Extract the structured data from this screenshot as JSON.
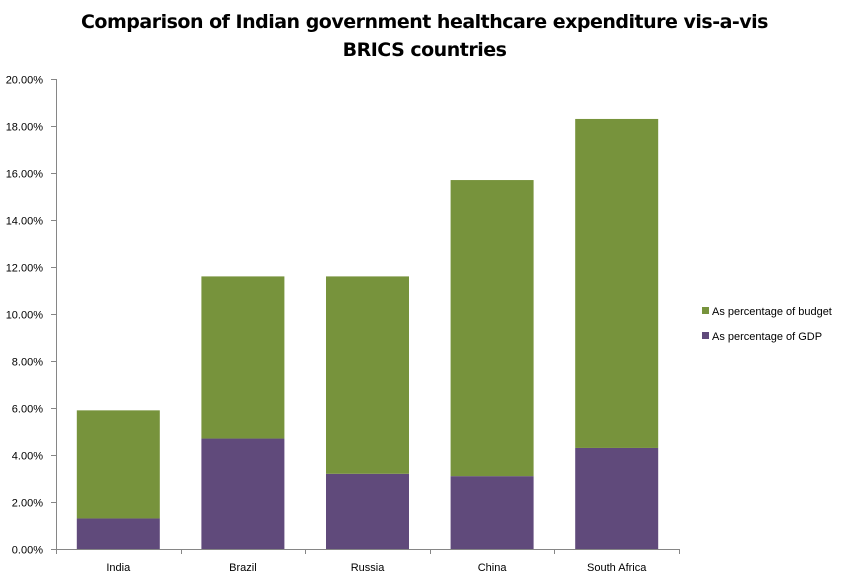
{
  "chart_data": {
    "type": "bar",
    "stacked": true,
    "title_lines": [
      "Comparison of Indian government healthcare expenditure vis-a-vis",
      "BRICS countries"
    ],
    "categories": [
      "India",
      "Brazil",
      "Russia",
      "China",
      "South Africa"
    ],
    "series": [
      {
        "name": "As percentage of GDP",
        "color": "#604a7b",
        "values": [
          1.3,
          4.7,
          3.2,
          3.1,
          4.3
        ]
      },
      {
        "name": "As percentage of budget",
        "color": "#77933c",
        "values": [
          4.6,
          6.9,
          8.4,
          12.6,
          14.0
        ]
      }
    ],
    "legend_order": [
      1,
      0
    ],
    "legend_position": "right",
    "yticks": [
      "0.00%",
      "2.00%",
      "4.00%",
      "6.00%",
      "8.00%",
      "10.00%",
      "12.00%",
      "14.00%",
      "16.00%",
      "18.00%",
      "20.00%"
    ],
    "ylim": [
      0,
      20
    ],
    "grid": false,
    "axis_color": "#868686"
  }
}
